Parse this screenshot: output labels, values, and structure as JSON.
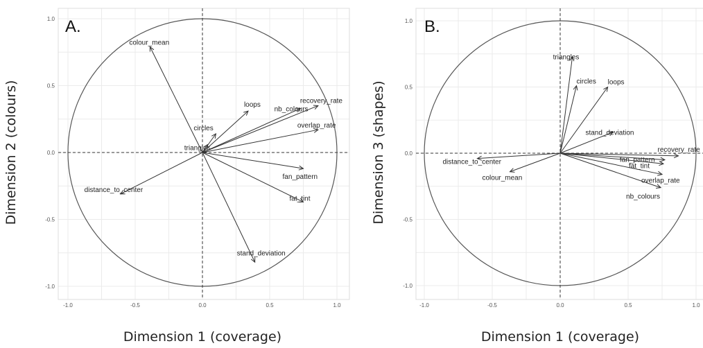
{
  "chart_data": [
    {
      "type": "scatter",
      "panel_label": "A.",
      "xlabel": "Dimension 1 (coverage)",
      "ylabel": "Dimension 2 (colours)",
      "xlim": [
        -1.0,
        1.0
      ],
      "ylim": [
        -1.0,
        1.0
      ],
      "x_ticks": [
        "-1.0",
        "-0.5",
        "0.0",
        "0.5",
        "1.0"
      ],
      "y_ticks": [
        "1.0",
        "0.5",
        "0.0",
        "-0.5",
        "-1.0"
      ],
      "grid": true,
      "vectors": [
        {
          "name": "colour_mean",
          "x": -0.39,
          "y": 0.79
        },
        {
          "name": "loops",
          "x": 0.34,
          "y": 0.31
        },
        {
          "name": "recovery_rate",
          "x": 0.86,
          "y": 0.35
        },
        {
          "name": "nb_colours",
          "x": 0.73,
          "y": 0.33
        },
        {
          "name": "circles",
          "x": 0.1,
          "y": 0.14
        },
        {
          "name": "overlap_rate",
          "x": 0.86,
          "y": 0.17
        },
        {
          "name": "triangles",
          "x": 0.04,
          "y": 0.06
        },
        {
          "name": "fan_pattern",
          "x": 0.75,
          "y": -0.12
        },
        {
          "name": "distance_to_center",
          "x": -0.61,
          "y": -0.31
        },
        {
          "name": "fat_tint",
          "x": 0.75,
          "y": -0.37
        },
        {
          "name": "stand_deviation",
          "x": 0.39,
          "y": -0.82
        }
      ]
    },
    {
      "type": "scatter",
      "panel_label": "B.",
      "xlabel": "Dimension 1 (coverage)",
      "ylabel": "Dimension 3 (shapes)",
      "xlim": [
        -1.0,
        1.0
      ],
      "ylim": [
        -1.0,
        1.0
      ],
      "x_ticks": [
        "-1.0",
        "-0.5",
        "0.0",
        "0.5",
        "1.0"
      ],
      "y_ticks": [
        "1.0",
        "0.5",
        "0.0",
        "-0.5",
        "-1.0"
      ],
      "grid": true,
      "vectors": [
        {
          "name": "triangles",
          "x": 0.09,
          "y": 0.73
        },
        {
          "name": "circles",
          "x": 0.12,
          "y": 0.51
        },
        {
          "name": "loops",
          "x": 0.35,
          "y": 0.5
        },
        {
          "name": "stand_deviation",
          "x": 0.39,
          "y": 0.16
        },
        {
          "name": "recovery_rate",
          "x": 0.87,
          "y": -0.02
        },
        {
          "name": "fan_pattern",
          "x": 0.77,
          "y": -0.05
        },
        {
          "name": "fat_tint",
          "x": 0.76,
          "y": -0.08
        },
        {
          "name": "overlap_rate",
          "x": 0.75,
          "y": -0.16
        },
        {
          "name": "distance_to_center",
          "x": -0.61,
          "y": -0.04
        },
        {
          "name": "colour_mean",
          "x": -0.37,
          "y": -0.14
        },
        {
          "name": "nb_colours",
          "x": 0.74,
          "y": -0.26
        }
      ]
    }
  ]
}
